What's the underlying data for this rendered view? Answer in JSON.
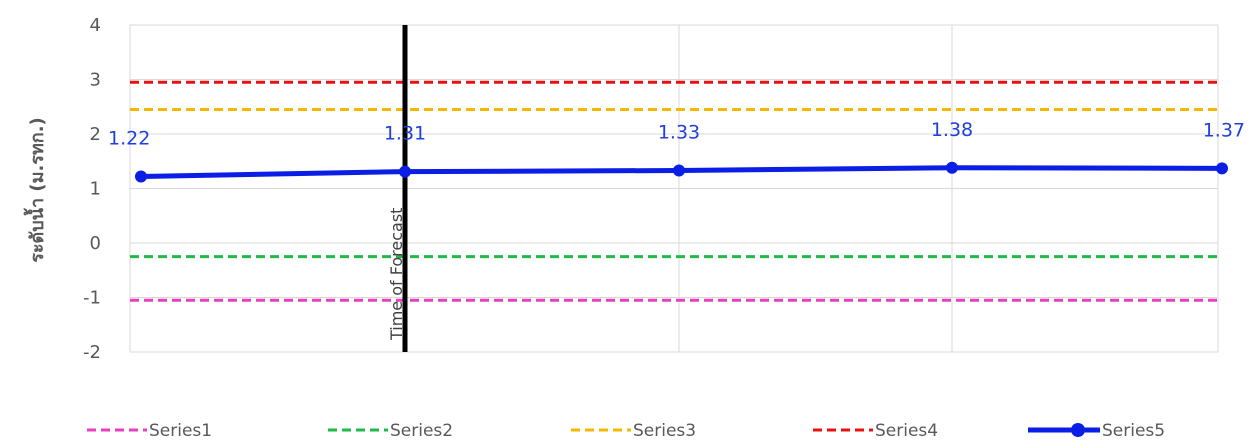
{
  "chart_data": {
    "type": "line",
    "ylabel": "ระดับน้ำ (ม.รทก.)",
    "ylim": [
      -2,
      4
    ],
    "yticks": [
      "-2",
      "-1",
      "0",
      "1",
      "2",
      "3",
      "4"
    ],
    "x_count": 5,
    "grid": true,
    "legend_position": "bottom",
    "threshold_series": [
      {
        "name": "Series1",
        "value": -1.05,
        "color": "#e83fc0",
        "style": "dashed"
      },
      {
        "name": "Series2",
        "value": -0.25,
        "color": "#1fba4a",
        "style": "dashed"
      },
      {
        "name": "Series3",
        "value": 2.45,
        "color": "#f5b800",
        "style": "dashed"
      },
      {
        "name": "Series4",
        "value": 2.95,
        "color": "#e81010",
        "style": "dashed"
      }
    ],
    "main_series": {
      "name": "Series5",
      "color": "#0a1ee6",
      "values": [
        1.22,
        1.31,
        1.33,
        1.38,
        1.37
      ],
      "labels": [
        "1.22",
        "1.31",
        "1.33",
        "1.38",
        "1.37"
      ]
    },
    "forecast_marker": {
      "label": "Time of Forecast",
      "x_index": 1,
      "color": "#000000"
    }
  }
}
